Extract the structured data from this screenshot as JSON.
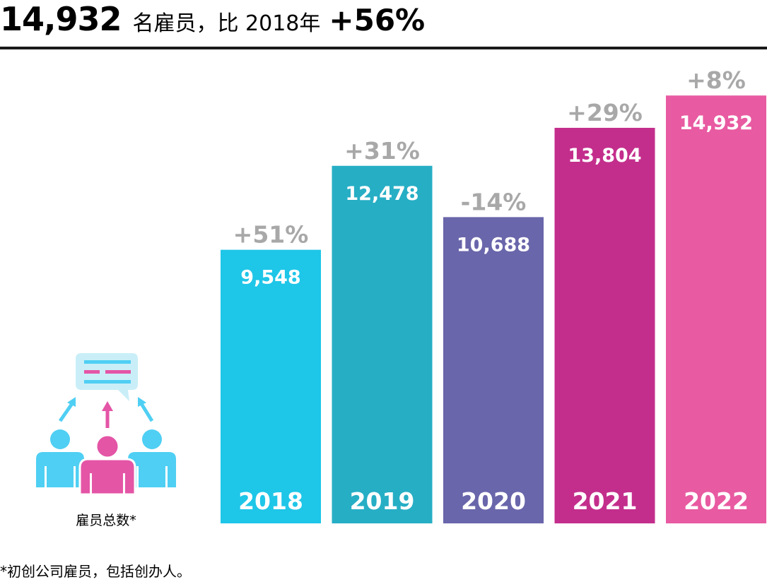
{
  "headline": {
    "total": "14,932",
    "text": "名雇员，比 2018年",
    "growth": "+56%"
  },
  "chart_data": {
    "type": "bar",
    "categories": [
      "2018",
      "2019",
      "2020",
      "2021",
      "2022"
    ],
    "values": [
      9548,
      12478,
      10688,
      13804,
      14932
    ],
    "value_labels": [
      "9,548",
      "12,478",
      "10,688",
      "13,804",
      "14,932"
    ],
    "change_labels": [
      "+51%",
      "+31%",
      "-14%",
      "+29%",
      "+8%"
    ],
    "colors": [
      "#1ec6e8",
      "#26aec5",
      "#6a66ab",
      "#c32e8c",
      "#e85aa1"
    ],
    "change_label_color": "#a8a8a8",
    "title": "",
    "xlabel": "",
    "ylabel": "",
    "ylim": [
      0,
      15800
    ],
    "grid": false,
    "legend": "none"
  },
  "icon": {
    "name": "employees-group-icon",
    "caption": "雇员总数*",
    "colors": {
      "blue": "#4fcff3",
      "pink": "#e455a6",
      "bubble": "#c9eef8"
    }
  },
  "footnote": "*初创公司雇员，包括创办人。"
}
